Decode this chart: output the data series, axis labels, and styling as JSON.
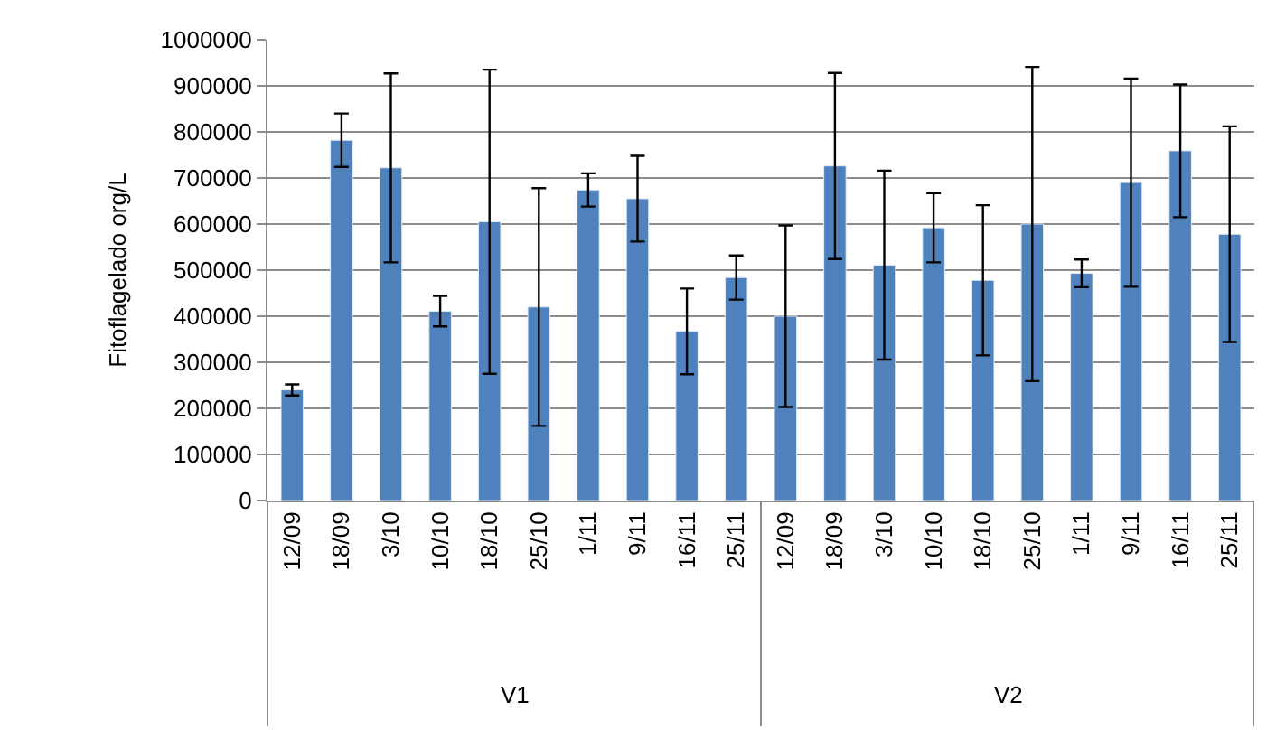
{
  "chart_data": {
    "type": "bar",
    "ylabel": "Fitoflagelado org/L",
    "categories": [
      "12/09",
      "18/09",
      "3/10",
      "10/10",
      "18/10",
      "25/10",
      "1/11",
      "9/11",
      "16/11",
      "25/11",
      "12/09",
      "18/09",
      "3/10",
      "10/10",
      "18/10",
      "25/10",
      "1/11",
      "9/11",
      "16/11",
      "25/11"
    ],
    "values": [
      240000,
      782000,
      722000,
      411000,
      605000,
      420000,
      674000,
      655000,
      367000,
      484000,
      400000,
      726000,
      511000,
      592000,
      478000,
      600000,
      493000,
      690000,
      759000,
      578000
    ],
    "errors": [
      12000,
      58000,
      205000,
      33000,
      330000,
      258000,
      36000,
      93000,
      93000,
      48000,
      197000,
      202000,
      205000,
      75000,
      163000,
      341000,
      30000,
      226000,
      144000,
      234000
    ],
    "color": "#4f81bd",
    "ylim": [
      0,
      1000000
    ],
    "yticks": [
      0,
      100000,
      200000,
      300000,
      400000,
      500000,
      600000,
      700000,
      800000,
      900000,
      1000000
    ],
    "grid": "y",
    "legend": false,
    "annotations": [
      "V1",
      "V2"
    ]
  }
}
